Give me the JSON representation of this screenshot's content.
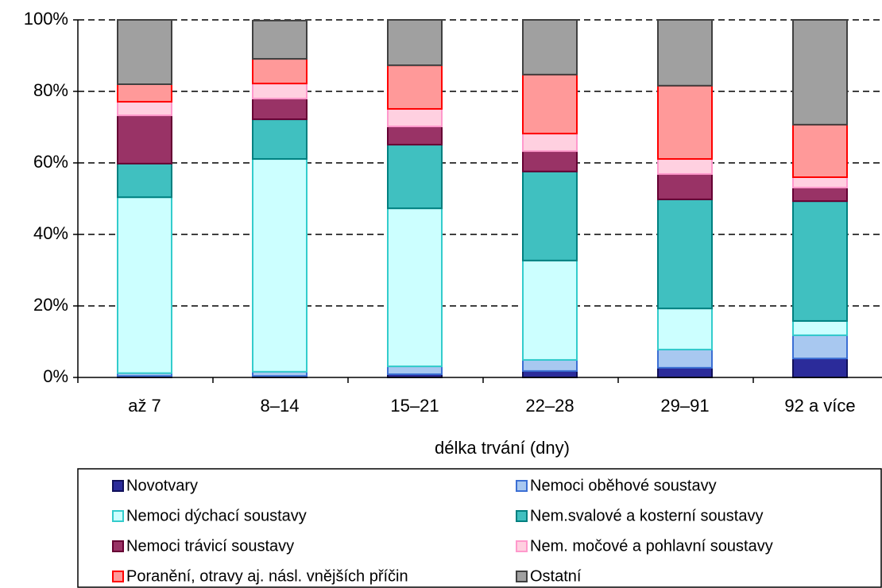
{
  "chart_data": {
    "type": "stacked_bar",
    "x_label": "délka trvání (dny)",
    "categories": [
      "až 7",
      "8–14",
      "15–21",
      "22–28",
      "29–91",
      "92 a více"
    ],
    "series": [
      {
        "name": "Novotvary",
        "color": "#2b2b9a",
        "border": "#10105a",
        "values": [
          0.4,
          0.4,
          0.9,
          1.8,
          2.7,
          5.3
        ]
      },
      {
        "name": "Nemoci oběhové soustavy",
        "color": "#a8c8f0",
        "border": "#3b6fd4",
        "values": [
          0.8,
          1.2,
          2.2,
          3.1,
          5.1,
          6.5
        ]
      },
      {
        "name": "Nemoci dýchací soustavy",
        "color": "#ccffff",
        "border": "#33cccc",
        "values": [
          49.2,
          59.5,
          44.2,
          27.8,
          11.5,
          4.0
        ]
      },
      {
        "name": "Nem.svalové a kosterní soustavy",
        "color": "#40c0c0",
        "border": "#008080",
        "values": [
          9.4,
          11.1,
          17.8,
          24.9,
          30.5,
          33.5
        ]
      },
      {
        "name": "Nemoci trávicí soustavy",
        "color": "#993366",
        "border": "#660033",
        "values": [
          13.5,
          5.8,
          5.1,
          5.7,
          7.1,
          3.8
        ]
      },
      {
        "name": "Nem. močové a pohlavní soustavy",
        "color": "#ffd0e0",
        "border": "#ff99cc",
        "values": [
          3.8,
          4.2,
          4.9,
          4.9,
          4.2,
          2.9
        ]
      },
      {
        "name": "Poranění, otravy aj. násl. vnějších příčin",
        "color": "#ff9999",
        "border": "#ff0000",
        "values": [
          4.9,
          6.9,
          12.2,
          16.5,
          20.5,
          14.7
        ]
      },
      {
        "name": "Ostatní",
        "color": "#a0a0a0",
        "border": "#404040",
        "values": [
          18.0,
          10.7,
          12.7,
          15.3,
          18.4,
          29.3
        ]
      }
    ],
    "ylim": [
      0,
      100
    ],
    "yticks": [
      {
        "value": 0,
        "label": "0%"
      },
      {
        "value": 20,
        "label": "20%"
      },
      {
        "value": 40,
        "label": "40%"
      },
      {
        "value": 60,
        "label": "60%"
      },
      {
        "value": 80,
        "label": "80%"
      },
      {
        "value": 100,
        "label": "100%"
      }
    ],
    "grid": true,
    "legend": "bottom"
  }
}
